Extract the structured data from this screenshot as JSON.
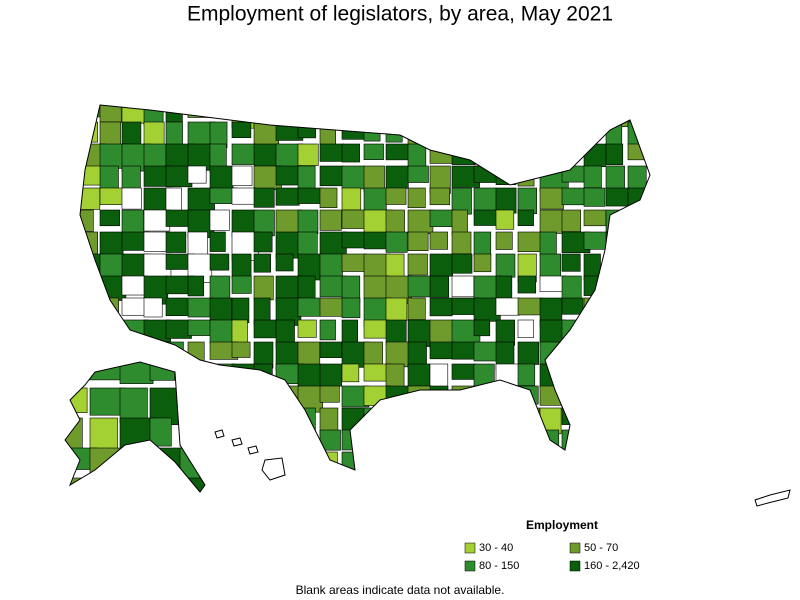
{
  "title": "Employment of legislators, by area, May 2021",
  "legend": {
    "title": "Employment",
    "items": [
      {
        "label": "30 - 40",
        "color": "#a3d133"
      },
      {
        "label": "50 - 70",
        "color": "#6f9a2c"
      },
      {
        "label": "80 - 150",
        "color": "#2e8b2e"
      },
      {
        "label": "160 - 2,420",
        "color": "#0b5e0b"
      }
    ]
  },
  "note": "Blank areas indicate data not available."
}
